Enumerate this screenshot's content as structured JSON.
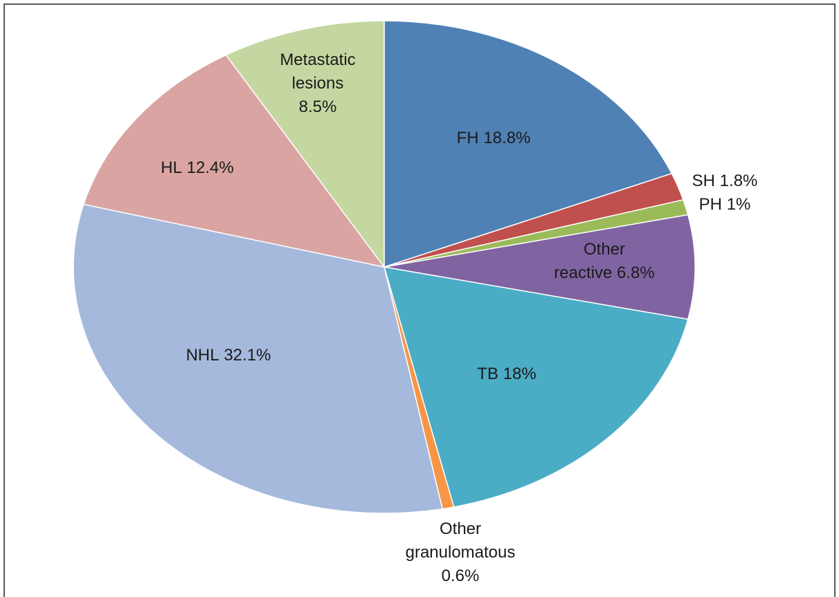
{
  "chart_data": {
    "type": "pie",
    "categories": [
      "FH",
      "SH",
      "PH",
      "Other reactive",
      "TB",
      "Other granulomatous",
      "NHL",
      "HL",
      "Metastatic lesions"
    ],
    "values": [
      18.8,
      1.8,
      1,
      6.8,
      18,
      0.6,
      32.1,
      12.4,
      8.5
    ],
    "value_labels": [
      "18.8%",
      "1.8%",
      "1%",
      "6.8%",
      "18%",
      "0.6%",
      "32.1%",
      "12.4%",
      "8.5%"
    ],
    "colors": [
      "#4f81b5",
      "#c0504d",
      "#9bbb59",
      "#8064a2",
      "#4bacc6",
      "#f79646",
      "#a5b9dc",
      "#d9a4a1",
      "#c4d7a1"
    ]
  }
}
